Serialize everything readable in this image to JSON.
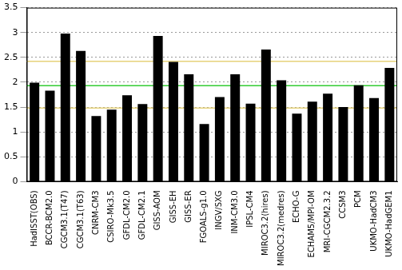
{
  "chart_data": {
    "type": "bar",
    "categories": [
      "HadISST(OBS)",
      "BCCR-BCM2.0",
      "CGCM3.1(T47)",
      "CGCM3.1(T63)",
      "CNRM-CM3",
      "CSIRO-Mk3.5",
      "GFDL-CM2.0",
      "GFDL-CM2.1",
      "GISS-AOM",
      "GISS-EH",
      "GISS-ER",
      "FGOALS-g1.0",
      "INGV/SXG",
      "INM-CM3.0",
      "IPSL-CM4",
      "MIROC3.2(hires)",
      "MIROC3.2(medres)",
      "ECHO-G",
      "ECHAM5/MPI-OM",
      "MRI-CGCM2.3.2",
      "CCSM3",
      "PCM",
      "UKMO-HadCM3",
      "UKMO-HadGEM1"
    ],
    "values": [
      1.99,
      1.83,
      2.98,
      2.63,
      1.32,
      1.45,
      1.74,
      1.56,
      2.93,
      2.41,
      2.16,
      1.16,
      1.7,
      2.16,
      1.57,
      2.66,
      2.04,
      1.37,
      1.61,
      1.77,
      1.5,
      1.94,
      1.68,
      2.29
    ],
    "color": "#000000",
    "ylim": [
      0,
      3.5
    ],
    "yticks": [
      0,
      0.5,
      1,
      1.5,
      2,
      2.5,
      3,
      3.5
    ],
    "grid": true,
    "reference_lines": [
      {
        "value": 1.93,
        "color": "#33cc33"
      },
      {
        "value": 2.42,
        "color": "#e6d27a"
      },
      {
        "value": 1.48,
        "color": "#e6d27a"
      }
    ]
  }
}
